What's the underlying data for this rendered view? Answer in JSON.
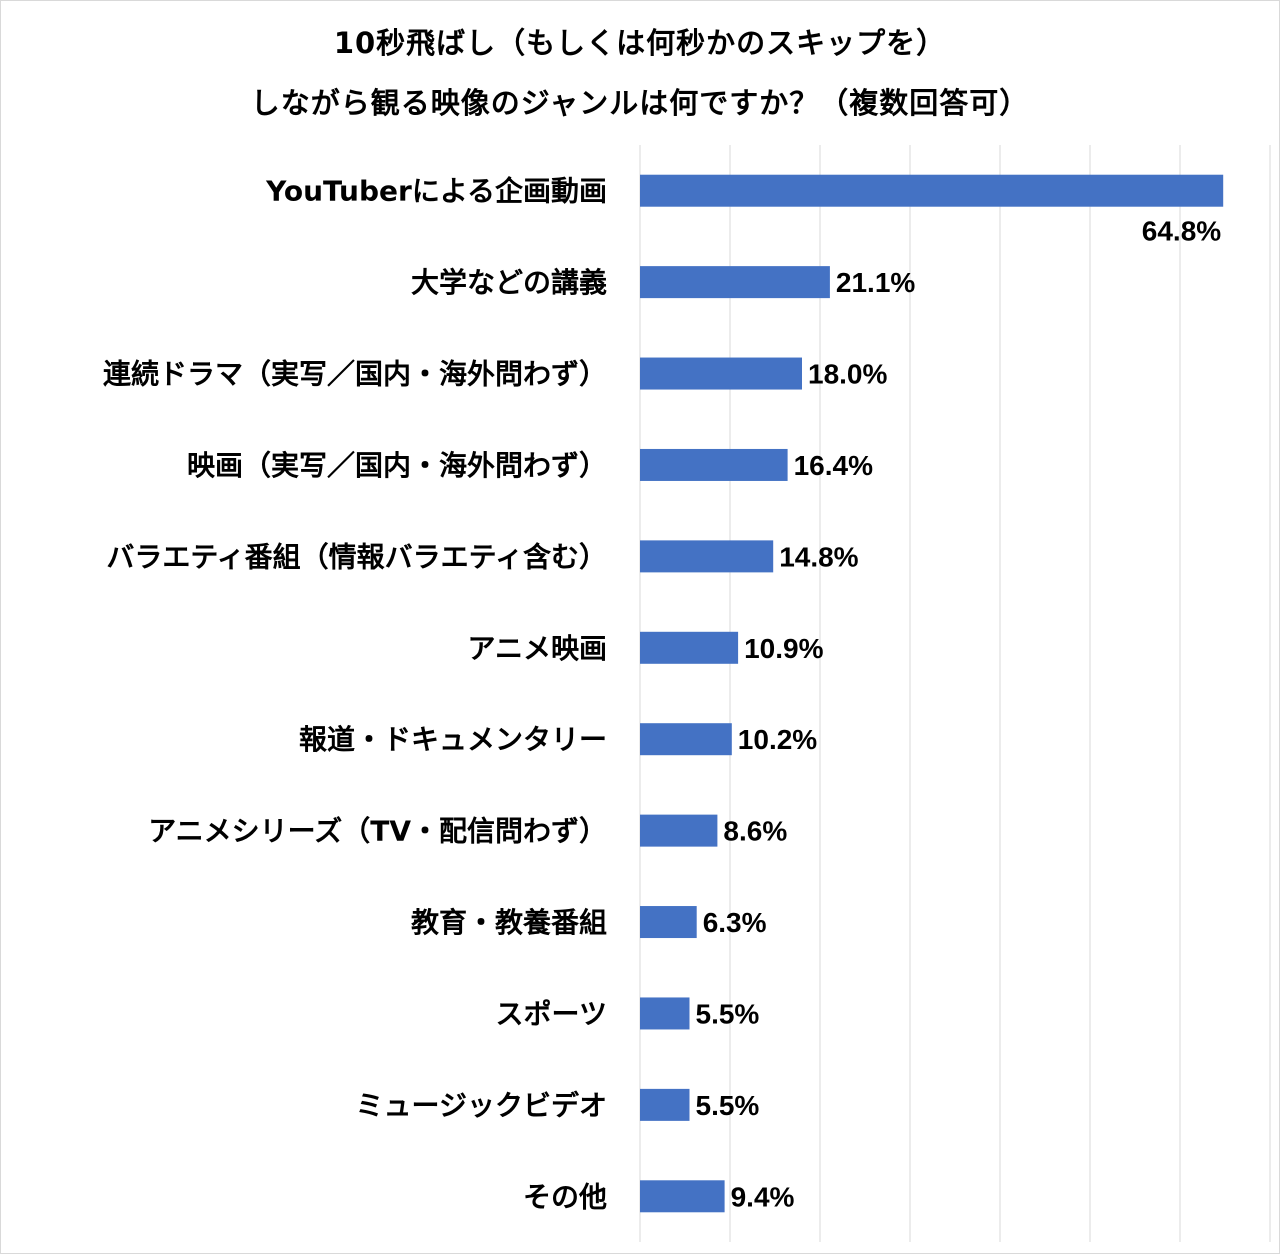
{
  "chart_data": {
    "type": "bar",
    "orientation": "horizontal",
    "title": [
      "10秒飛ばし（もしくは何秒かのスキップを）",
      "しながら観る映像のジャンルは何ですか？（複数回答可）"
    ],
    "categories": [
      "YouTuberによる企画動画",
      "大学などの講義",
      "連続ドラマ（実写／国内・海外問わず）",
      "映画（実写／国内・海外問わず）",
      "バラエティ番組（情報バラエティ含む）",
      "アニメ映画",
      "報道・ドキュメンタリー",
      "アニメシリーズ（TV・配信問わず）",
      "教育・教養番組",
      "スポーツ",
      "ミュージックビデオ",
      "その他"
    ],
    "values": [
      64.8,
      21.1,
      18.0,
      16.4,
      14.8,
      10.9,
      10.2,
      8.6,
      6.3,
      5.5,
      5.5,
      9.4
    ],
    "labels": [
      "64.8%",
      "21.1%",
      "18.0%",
      "16.4%",
      "14.8%",
      "10.9%",
      "10.2%",
      "8.6%",
      "6.3%",
      "5.5%",
      "5.5%",
      "9.4%"
    ],
    "xlim": [
      0,
      70
    ],
    "grid_step": 10,
    "grid": true,
    "xlabel": "",
    "ylabel": "",
    "bar_color": "#4472C4",
    "grid_color": "#d9d9d9"
  }
}
